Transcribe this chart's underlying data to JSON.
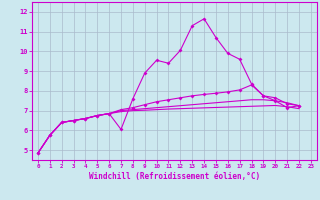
{
  "xlabel": "Windchill (Refroidissement éolien,°C)",
  "background_color": "#cce8ef",
  "line_color": "#cc00cc",
  "grid_color": "#aabbcc",
  "xlim": [
    -0.5,
    23.5
  ],
  "ylim": [
    4.5,
    12.5
  ],
  "yticks": [
    5,
    6,
    7,
    8,
    9,
    10,
    11,
    12
  ],
  "xticks": [
    0,
    1,
    2,
    3,
    4,
    5,
    6,
    7,
    8,
    9,
    10,
    11,
    12,
    13,
    14,
    15,
    16,
    17,
    18,
    19,
    20,
    21,
    22,
    23
  ],
  "series": {
    "peaked": {
      "x": [
        0,
        1,
        2,
        3,
        4,
        5,
        6,
        7,
        8,
        9,
        10,
        11,
        12,
        13,
        14,
        15,
        16,
        17,
        18,
        19,
        20,
        21,
        22,
        23
      ],
      "y": [
        4.85,
        5.75,
        6.4,
        6.5,
        6.6,
        6.75,
        6.85,
        6.05,
        7.6,
        8.9,
        9.55,
        9.4,
        10.05,
        11.3,
        11.65,
        10.7,
        9.9,
        9.6,
        8.35,
        7.75,
        7.5,
        7.15,
        7.25,
        null
      ],
      "marker": true
    },
    "upper": {
      "x": [
        0,
        1,
        2,
        3,
        4,
        5,
        6,
        7,
        8,
        9,
        10,
        11,
        12,
        13,
        14,
        15,
        16,
        17,
        18,
        19,
        20,
        21,
        22,
        23
      ],
      "y": [
        4.85,
        5.75,
        6.4,
        6.5,
        6.6,
        6.75,
        6.85,
        7.05,
        7.15,
        7.3,
        7.45,
        7.55,
        7.65,
        7.75,
        7.82,
        7.88,
        7.95,
        8.05,
        8.3,
        7.75,
        7.65,
        7.35,
        7.25,
        null
      ],
      "marker": true
    },
    "mid": {
      "x": [
        0,
        1,
        2,
        3,
        4,
        5,
        6,
        7,
        8,
        9,
        10,
        11,
        12,
        13,
        14,
        15,
        16,
        17,
        18,
        19,
        20,
        21,
        22,
        23
      ],
      "y": [
        4.85,
        5.75,
        6.4,
        6.5,
        6.6,
        6.75,
        6.85,
        7.0,
        7.05,
        7.1,
        7.15,
        7.2,
        7.25,
        7.3,
        7.35,
        7.4,
        7.45,
        7.5,
        7.55,
        7.55,
        7.5,
        7.4,
        7.25,
        null
      ],
      "marker": false
    },
    "lower": {
      "x": [
        0,
        1,
        2,
        3,
        4,
        5,
        6,
        7,
        8,
        9,
        10,
        11,
        12,
        13,
        14,
        15,
        16,
        17,
        18,
        19,
        20,
        21,
        22,
        23
      ],
      "y": [
        4.85,
        5.75,
        6.4,
        6.5,
        6.6,
        6.75,
        6.85,
        6.95,
        7.0,
        7.02,
        7.05,
        7.08,
        7.1,
        7.12,
        7.14,
        7.16,
        7.18,
        7.2,
        7.22,
        7.24,
        7.26,
        7.2,
        7.1,
        null
      ],
      "marker": false
    }
  }
}
